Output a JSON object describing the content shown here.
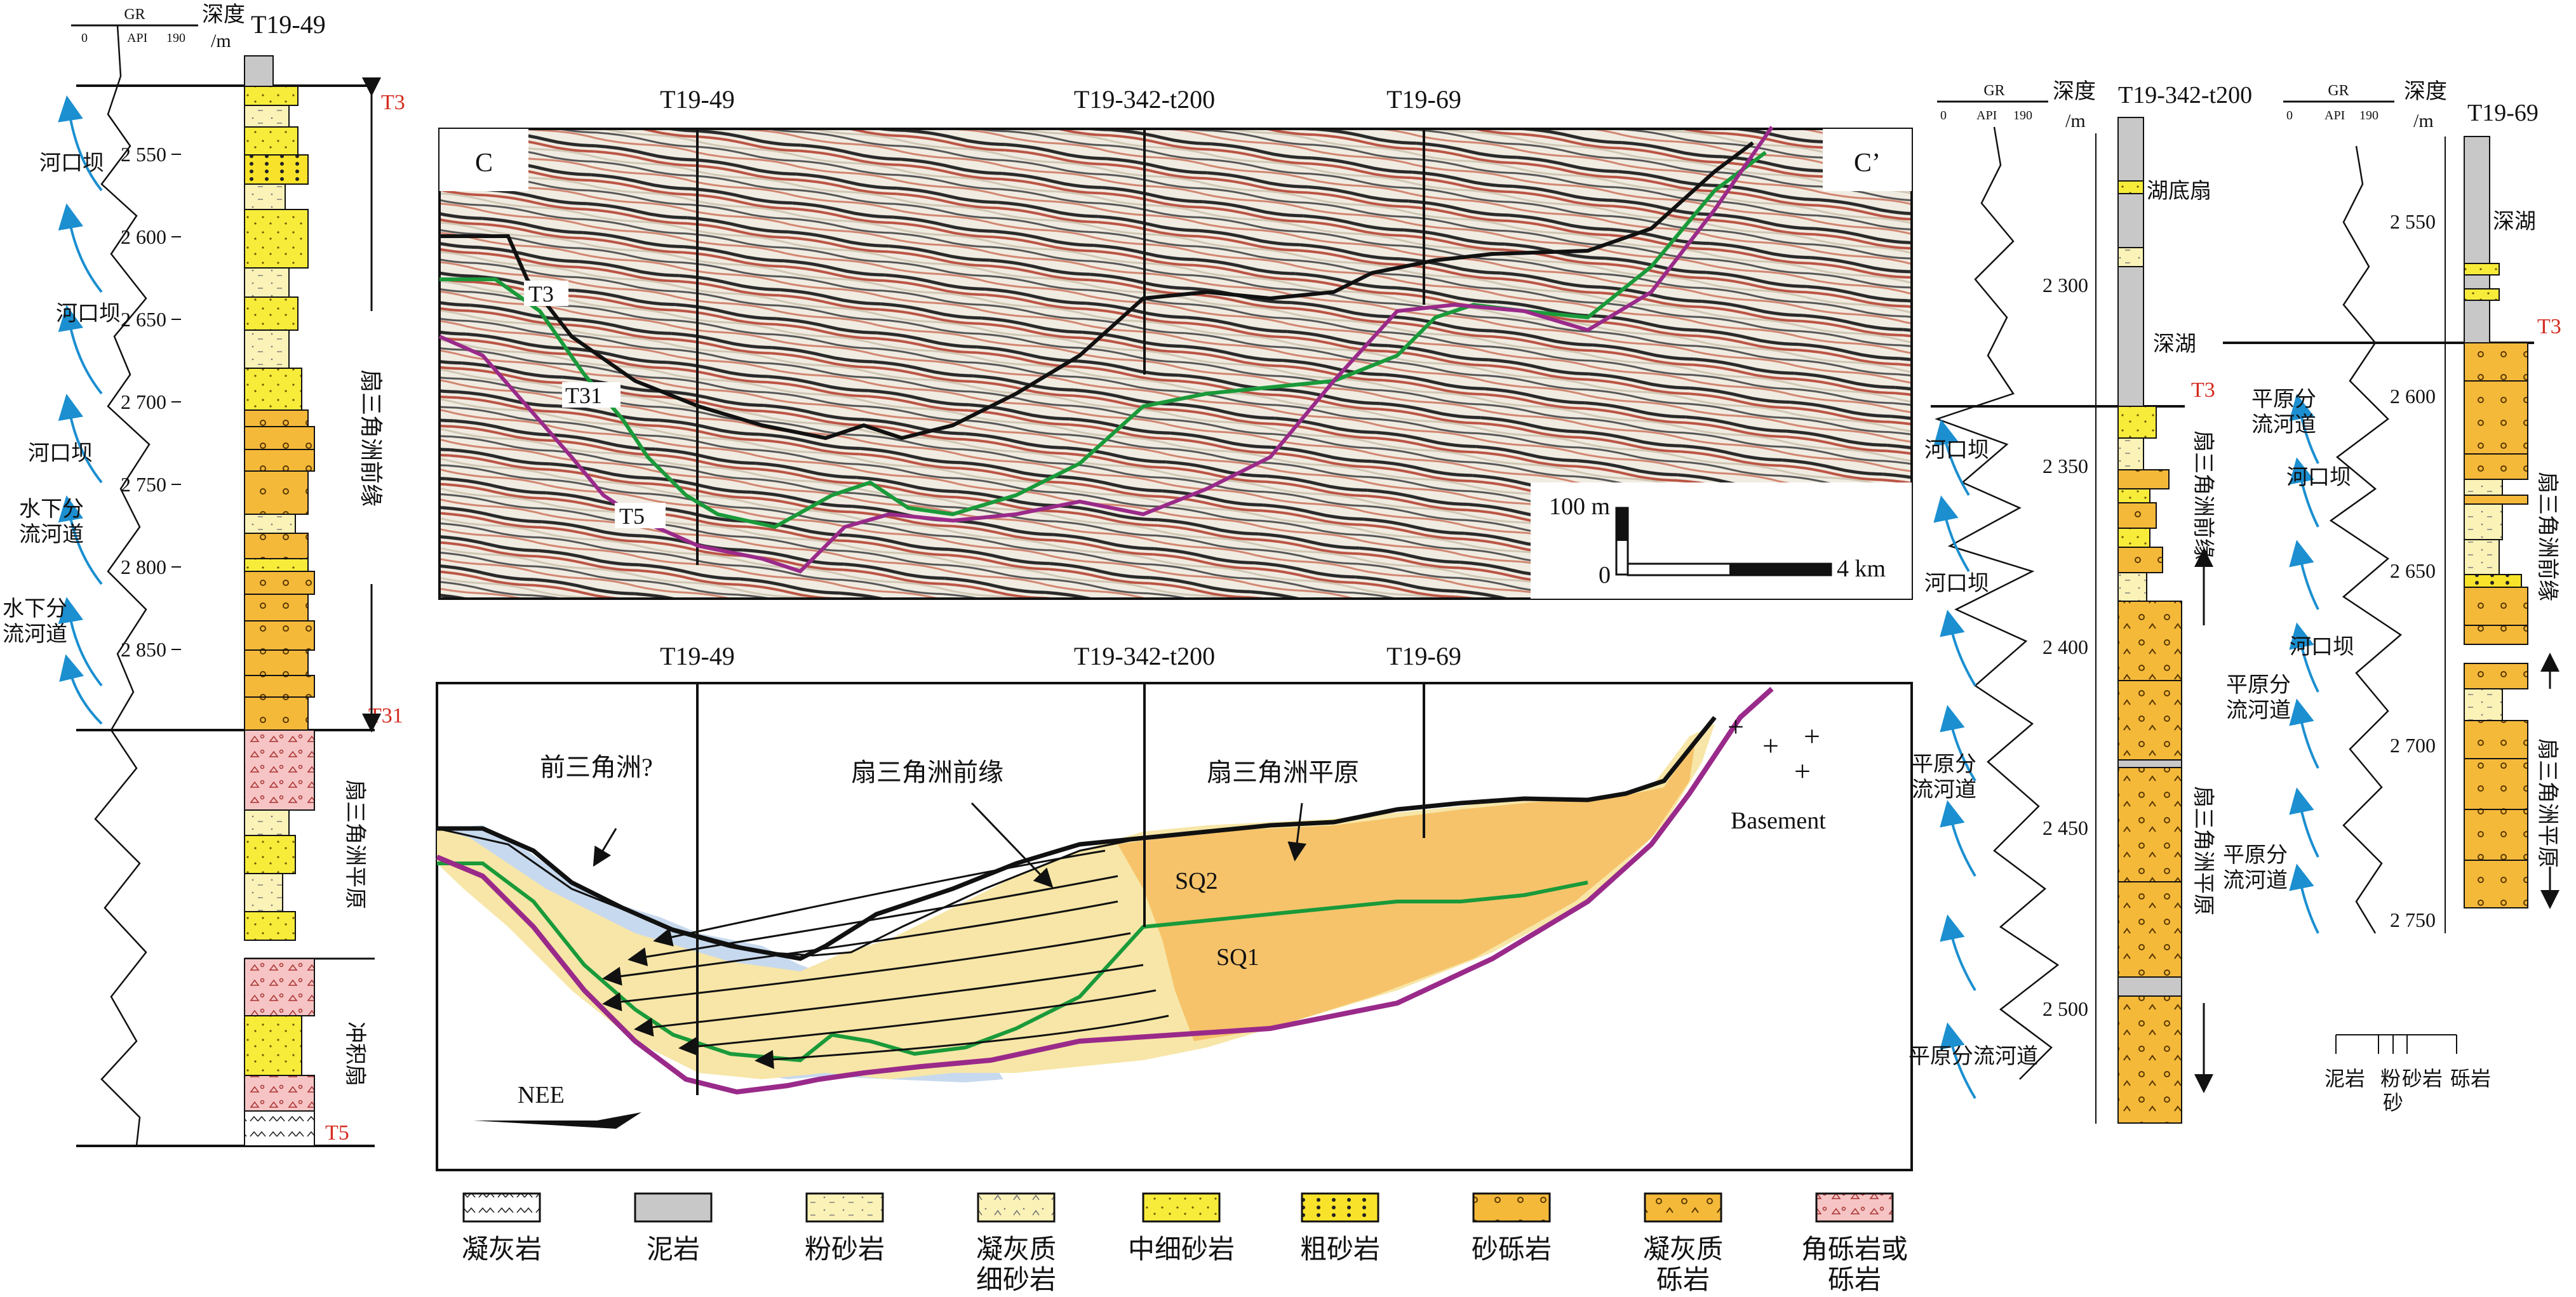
{
  "well_left": {
    "name": "T19-49",
    "header": {
      "gr": "GR",
      "api": "API",
      "api_max": "190",
      "api_min": "0",
      "depth_title": "深度",
      "depth_unit": "/m"
    },
    "depth_ticks": [
      "2 550",
      "2 600",
      "2 650",
      "2 700",
      "2 750",
      "2 800",
      "2 850"
    ],
    "facies": [
      "河口坝",
      "河口坝",
      "河口坝",
      "水下分",
      "流河道",
      "水下分",
      "流河道"
    ],
    "horizons": [
      "T3",
      "T31",
      "T5"
    ],
    "units": [
      "扇三角洲前缘",
      "扇三角洲平原",
      "冲积扇"
    ]
  },
  "seismic": {
    "corner_left": "C",
    "corner_right": "C’",
    "wells": [
      "T19-49",
      "T19-342-t200",
      "T19-69"
    ],
    "horizons": [
      "T3",
      "T31",
      "T5"
    ],
    "scale": {
      "vertical": "100 m",
      "zero": "0",
      "horizontal": "4 km"
    }
  },
  "interp": {
    "wells": [
      "T19-49",
      "T19-342-t200",
      "T19-69"
    ],
    "labels": {
      "prodelta": "前三角洲?",
      "front": "扇三角洲前缘",
      "plain": "扇三角洲平原",
      "sq2": "SQ2",
      "sq1": "SQ1",
      "basement": "Basement",
      "direction": "NEE"
    }
  },
  "well_mid": {
    "name": "T19-342-t200",
    "header": {
      "gr": "GR",
      "api": "API",
      "api_max": "190",
      "api_min": "0",
      "depth_title": "深度",
      "depth_unit": "/m"
    },
    "depth_ticks": [
      "2 300",
      "2 350",
      "2 400",
      "2 450",
      "2 500"
    ],
    "facies": [
      "湖底扇",
      "深湖",
      "河口坝",
      "河口坝",
      "平原分",
      "流河道",
      "平原分流河道"
    ],
    "horizons": [
      "T3"
    ],
    "units": [
      "扇三角洲前缘",
      "扇三角洲平原"
    ]
  },
  "well_right": {
    "name": "T19-69",
    "header": {
      "gr": "GR",
      "api": "API",
      "api_max": "190",
      "api_min": "0",
      "depth_title": "深度",
      "depth_unit": "/m"
    },
    "depth_ticks": [
      "2 550",
      "2 600",
      "2 650",
      "2 700",
      "2 750"
    ],
    "facies": [
      "深湖",
      "平原分",
      "流河道",
      "河口坝",
      "河口坝",
      "平原分",
      "流河道",
      "平原分",
      "流河道"
    ],
    "horizons": [
      "T3"
    ],
    "units": [
      "扇三角洲前缘",
      "扇三角洲平原"
    ],
    "grain_scale": [
      "泥岩",
      "粉",
      "砂",
      "砂岩",
      "砾岩"
    ]
  },
  "legend": [
    {
      "label": "凝灰岩",
      "label2": ""
    },
    {
      "label": "泥岩",
      "label2": ""
    },
    {
      "label": "粉砂岩",
      "label2": ""
    },
    {
      "label": "凝灰质",
      "label2": "细砂岩"
    },
    {
      "label": "中细砂岩",
      "label2": ""
    },
    {
      "label": "粗砂岩",
      "label2": ""
    },
    {
      "label": "砂砾岩",
      "label2": ""
    },
    {
      "label": "凝灰质",
      "label2": "砾岩"
    },
    {
      "label": "角砾岩或",
      "label2": "砾岩"
    }
  ],
  "colors": {
    "horizon_t3": "#111111",
    "horizon_t31": "#1a9a3a",
    "horizon_t5": "#9a2a8a",
    "facies_arrow": "#1b8fd0",
    "gravel": "#f5b93a",
    "sand": "#f8ec3a",
    "silt": "#fbf2b8",
    "breccia": "#f6c4c4",
    "mud": "#c8c8c8"
  }
}
